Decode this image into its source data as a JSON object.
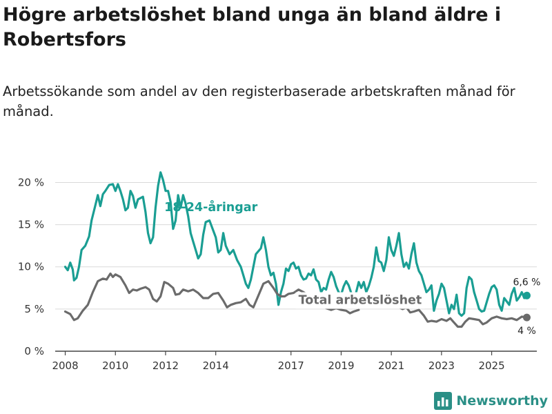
{
  "header": {
    "title": "Högre arbetslöshet bland unga än bland äldre i Robertsfors",
    "subtitle": "Arbetssökande som andel av den registerbaserade arbetskraften månad för månad."
  },
  "brand": {
    "name": "Newsworthy"
  },
  "colors": {
    "youth": "#1a9e93",
    "total": "#6b6b6b",
    "grid": "#d9d9d9"
  },
  "chart_data": {
    "type": "line",
    "title": "Högre arbetslöshet bland unga än bland äldre i Robertsfors",
    "xlabel": "",
    "ylabel": "",
    "xlim": [
      2007.6,
      2026.8
    ],
    "ylim": [
      0,
      22
    ],
    "y_ticks": [
      0,
      5,
      10,
      15,
      20
    ],
    "y_tick_labels": [
      "0 %",
      "5 %",
      "10 %",
      "15 %",
      "20 %"
    ],
    "x_ticks": [
      2008,
      2010,
      2012,
      2014,
      2017,
      2019,
      2021,
      2023,
      2025
    ],
    "x_tick_labels": [
      "2008",
      "2010",
      "2012",
      "2014",
      "2017",
      "2019",
      "2021",
      "2023",
      "2025"
    ],
    "series": [
      {
        "name": "18-24-åringar",
        "end_label": "6,6 %",
        "points": [
          [
            2008.0,
            10.0
          ],
          [
            2008.1,
            9.6
          ],
          [
            2008.2,
            10.5
          ],
          [
            2008.3,
            9.7
          ],
          [
            2008.35,
            8.4
          ],
          [
            2008.45,
            8.7
          ],
          [
            2008.55,
            10.0
          ],
          [
            2008.65,
            12.0
          ],
          [
            2008.8,
            12.5
          ],
          [
            2008.95,
            13.6
          ],
          [
            2009.05,
            15.5
          ],
          [
            2009.2,
            17.3
          ],
          [
            2009.3,
            18.5
          ],
          [
            2009.4,
            17.2
          ],
          [
            2009.5,
            18.6
          ],
          [
            2009.6,
            19.0
          ],
          [
            2009.75,
            19.7
          ],
          [
            2009.9,
            19.8
          ],
          [
            2010.0,
            19.0
          ],
          [
            2010.1,
            19.8
          ],
          [
            2010.2,
            19.0
          ],
          [
            2010.3,
            18.0
          ],
          [
            2010.4,
            16.7
          ],
          [
            2010.5,
            17.0
          ],
          [
            2010.6,
            19.0
          ],
          [
            2010.7,
            18.4
          ],
          [
            2010.8,
            17.0
          ],
          [
            2010.9,
            18.0
          ],
          [
            2011.1,
            18.3
          ],
          [
            2011.2,
            16.5
          ],
          [
            2011.3,
            14.0
          ],
          [
            2011.4,
            12.8
          ],
          [
            2011.5,
            13.5
          ],
          [
            2011.6,
            17.0
          ],
          [
            2011.7,
            19.6
          ],
          [
            2011.8,
            21.2
          ],
          [
            2011.9,
            20.3
          ],
          [
            2012.0,
            19.0
          ],
          [
            2012.1,
            19.0
          ],
          [
            2012.2,
            17.7
          ],
          [
            2012.3,
            14.5
          ],
          [
            2012.4,
            15.5
          ],
          [
            2012.5,
            18.5
          ],
          [
            2012.6,
            17.0
          ],
          [
            2012.7,
            18.5
          ],
          [
            2012.8,
            17.5
          ],
          [
            2012.9,
            16.0
          ],
          [
            2013.0,
            14.0
          ],
          [
            2013.1,
            13.0
          ],
          [
            2013.2,
            12.0
          ],
          [
            2013.3,
            11.0
          ],
          [
            2013.4,
            11.5
          ],
          [
            2013.5,
            13.8
          ],
          [
            2013.6,
            15.3
          ],
          [
            2013.75,
            15.5
          ],
          [
            2013.9,
            14.3
          ],
          [
            2014.0,
            13.5
          ],
          [
            2014.1,
            11.7
          ],
          [
            2014.2,
            12.0
          ],
          [
            2014.3,
            14.0
          ],
          [
            2014.4,
            12.5
          ],
          [
            2014.55,
            11.5
          ],
          [
            2014.7,
            12.0
          ],
          [
            2014.85,
            10.8
          ],
          [
            2015.0,
            10.0
          ],
          [
            2015.1,
            9.0
          ],
          [
            2015.2,
            8.0
          ],
          [
            2015.3,
            7.5
          ],
          [
            2015.4,
            8.5
          ],
          [
            2015.5,
            10.0
          ],
          [
            2015.6,
            11.5
          ],
          [
            2015.8,
            12.2
          ],
          [
            2015.9,
            13.5
          ],
          [
            2016.0,
            12.0
          ],
          [
            2016.1,
            10.0
          ],
          [
            2016.2,
            9.0
          ],
          [
            2016.3,
            9.3
          ],
          [
            2016.4,
            8.0
          ],
          [
            2016.5,
            5.5
          ],
          [
            2016.6,
            7.0
          ],
          [
            2016.7,
            8.0
          ],
          [
            2016.8,
            9.8
          ],
          [
            2016.9,
            9.5
          ],
          [
            2017.0,
            10.3
          ],
          [
            2017.1,
            10.5
          ],
          [
            2017.2,
            9.8
          ],
          [
            2017.3,
            10.0
          ],
          [
            2017.4,
            9.0
          ],
          [
            2017.5,
            8.5
          ],
          [
            2017.6,
            8.6
          ],
          [
            2017.7,
            9.2
          ],
          [
            2017.8,
            9.0
          ],
          [
            2017.9,
            9.7
          ],
          [
            2018.0,
            8.5
          ],
          [
            2018.1,
            8.2
          ],
          [
            2018.2,
            7.0
          ],
          [
            2018.3,
            7.5
          ],
          [
            2018.4,
            7.3
          ],
          [
            2018.5,
            8.5
          ],
          [
            2018.6,
            9.4
          ],
          [
            2018.7,
            8.8
          ],
          [
            2018.8,
            7.7
          ],
          [
            2018.9,
            7.0
          ],
          [
            2019.0,
            6.7
          ],
          [
            2019.1,
            7.7
          ],
          [
            2019.2,
            8.3
          ],
          [
            2019.3,
            7.8
          ],
          [
            2019.4,
            6.9
          ],
          [
            2019.5,
            6.2
          ],
          [
            2019.6,
            7.0
          ],
          [
            2019.7,
            8.2
          ],
          [
            2019.8,
            7.5
          ],
          [
            2019.9,
            8.2
          ],
          [
            2020.0,
            7.0
          ],
          [
            2020.1,
            7.7
          ],
          [
            2020.2,
            8.7
          ],
          [
            2020.3,
            10.0
          ],
          [
            2020.4,
            12.3
          ],
          [
            2020.5,
            10.7
          ],
          [
            2020.6,
            10.5
          ],
          [
            2020.7,
            9.5
          ],
          [
            2020.8,
            10.8
          ],
          [
            2020.9,
            13.5
          ],
          [
            2021.0,
            12.0
          ],
          [
            2021.1,
            11.3
          ],
          [
            2021.2,
            12.5
          ],
          [
            2021.3,
            14.0
          ],
          [
            2021.4,
            11.5
          ],
          [
            2021.5,
            10.0
          ],
          [
            2021.6,
            10.5
          ],
          [
            2021.7,
            9.8
          ],
          [
            2021.8,
            11.5
          ],
          [
            2021.9,
            12.8
          ],
          [
            2022.0,
            10.5
          ],
          [
            2022.1,
            9.5
          ],
          [
            2022.2,
            9.0
          ],
          [
            2022.3,
            8.0
          ],
          [
            2022.4,
            7.0
          ],
          [
            2022.5,
            7.3
          ],
          [
            2022.6,
            7.8
          ],
          [
            2022.7,
            4.8
          ],
          [
            2022.8,
            6.0
          ],
          [
            2022.9,
            6.8
          ],
          [
            2023.0,
            8.0
          ],
          [
            2023.1,
            7.5
          ],
          [
            2023.2,
            6.0
          ],
          [
            2023.3,
            4.5
          ],
          [
            2023.4,
            5.5
          ],
          [
            2023.5,
            5.0
          ],
          [
            2023.6,
            6.7
          ],
          [
            2023.7,
            4.5
          ],
          [
            2023.8,
            4.2
          ],
          [
            2023.9,
            4.5
          ],
          [
            2024.0,
            7.5
          ],
          [
            2024.1,
            8.8
          ],
          [
            2024.2,
            8.5
          ],
          [
            2024.3,
            7.0
          ],
          [
            2024.4,
            6.0
          ],
          [
            2024.5,
            5.0
          ],
          [
            2024.6,
            4.7
          ],
          [
            2024.7,
            4.8
          ],
          [
            2024.8,
            5.8
          ],
          [
            2024.9,
            6.8
          ],
          [
            2025.0,
            7.6
          ],
          [
            2025.1,
            7.8
          ],
          [
            2025.2,
            7.3
          ],
          [
            2025.3,
            5.5
          ],
          [
            2025.4,
            4.8
          ],
          [
            2025.5,
            6.3
          ],
          [
            2025.6,
            5.9
          ],
          [
            2025.7,
            5.5
          ],
          [
            2025.8,
            6.8
          ],
          [
            2025.9,
            7.5
          ],
          [
            2026.0,
            6.0
          ],
          [
            2026.1,
            6.4
          ],
          [
            2026.2,
            7.0
          ],
          [
            2026.3,
            6.3
          ],
          [
            2026.4,
            6.6
          ]
        ]
      },
      {
        "name": "Total arbetslöshet",
        "end_label": "4 %",
        "points": [
          [
            2008.0,
            4.7
          ],
          [
            2008.2,
            4.4
          ],
          [
            2008.35,
            3.7
          ],
          [
            2008.5,
            3.9
          ],
          [
            2008.7,
            4.8
          ],
          [
            2008.9,
            5.5
          ],
          [
            2009.1,
            7.0
          ],
          [
            2009.3,
            8.3
          ],
          [
            2009.5,
            8.6
          ],
          [
            2009.65,
            8.5
          ],
          [
            2009.8,
            9.2
          ],
          [
            2009.9,
            8.8
          ],
          [
            2010.0,
            9.1
          ],
          [
            2010.2,
            8.8
          ],
          [
            2010.4,
            7.8
          ],
          [
            2010.55,
            6.9
          ],
          [
            2010.7,
            7.3
          ],
          [
            2010.85,
            7.2
          ],
          [
            2011.0,
            7.4
          ],
          [
            2011.2,
            7.6
          ],
          [
            2011.35,
            7.3
          ],
          [
            2011.5,
            6.2
          ],
          [
            2011.65,
            5.9
          ],
          [
            2011.8,
            6.5
          ],
          [
            2011.95,
            8.2
          ],
          [
            2012.1,
            8.0
          ],
          [
            2012.3,
            7.5
          ],
          [
            2012.4,
            6.7
          ],
          [
            2012.55,
            6.8
          ],
          [
            2012.7,
            7.3
          ],
          [
            2012.9,
            7.1
          ],
          [
            2013.1,
            7.3
          ],
          [
            2013.3,
            6.9
          ],
          [
            2013.5,
            6.3
          ],
          [
            2013.7,
            6.3
          ],
          [
            2013.9,
            6.8
          ],
          [
            2014.1,
            6.9
          ],
          [
            2014.3,
            6.0
          ],
          [
            2014.45,
            5.2
          ],
          [
            2014.6,
            5.5
          ],
          [
            2014.8,
            5.7
          ],
          [
            2015.0,
            5.8
          ],
          [
            2015.2,
            6.2
          ],
          [
            2015.35,
            5.5
          ],
          [
            2015.5,
            5.2
          ],
          [
            2015.7,
            6.6
          ],
          [
            2015.9,
            8.0
          ],
          [
            2016.1,
            8.3
          ],
          [
            2016.3,
            7.5
          ],
          [
            2016.45,
            6.8
          ],
          [
            2016.6,
            6.5
          ],
          [
            2016.75,
            6.5
          ],
          [
            2016.9,
            6.8
          ],
          [
            2017.1,
            6.9
          ],
          [
            2017.3,
            7.3
          ],
          [
            2017.5,
            7.0
          ],
          [
            2017.65,
            6.7
          ],
          [
            2018.4,
            5.1
          ],
          [
            2018.6,
            4.9
          ],
          [
            2018.8,
            5.1
          ],
          [
            2019.0,
            4.9
          ],
          [
            2019.2,
            4.8
          ],
          [
            2019.35,
            4.5
          ],
          [
            2019.5,
            4.7
          ],
          [
            2019.7,
            4.9
          ],
          [
            2021.3,
            5.2
          ],
          [
            2021.45,
            5.0
          ],
          [
            2021.6,
            5.2
          ],
          [
            2021.75,
            4.6
          ],
          [
            2021.9,
            4.7
          ],
          [
            2022.1,
            4.9
          ],
          [
            2022.3,
            4.2
          ],
          [
            2022.45,
            3.5
          ],
          [
            2022.6,
            3.6
          ],
          [
            2022.8,
            3.5
          ],
          [
            2023.0,
            3.8
          ],
          [
            2023.2,
            3.6
          ],
          [
            2023.35,
            3.9
          ],
          [
            2023.5,
            3.4
          ],
          [
            2023.65,
            2.9
          ],
          [
            2023.8,
            2.9
          ],
          [
            2023.95,
            3.5
          ],
          [
            2024.1,
            3.9
          ],
          [
            2024.3,
            3.8
          ],
          [
            2024.5,
            3.7
          ],
          [
            2024.65,
            3.2
          ],
          [
            2024.8,
            3.4
          ],
          [
            2025.0,
            3.9
          ],
          [
            2025.2,
            4.1
          ],
          [
            2025.4,
            3.9
          ],
          [
            2025.6,
            3.8
          ],
          [
            2025.8,
            3.9
          ],
          [
            2026.0,
            3.7
          ],
          [
            2026.2,
            4.1
          ],
          [
            2026.4,
            4.0
          ]
        ]
      }
    ]
  }
}
